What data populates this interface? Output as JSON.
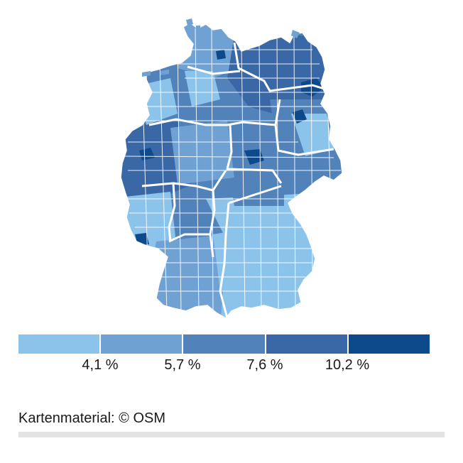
{
  "legend": {
    "colors": [
      "#8cc3ea",
      "#6fa2d3",
      "#5282ba",
      "#3a67a6",
      "#0d4a8c"
    ],
    "ticks": [
      "4,1 %",
      "5,7 %",
      "7,6 %",
      "10,2 %"
    ]
  },
  "credit": "Kartenmaterial: © OSM",
  "map": {
    "region": "Germany",
    "shading": "choropleth by district (Landkreise), five colour classes",
    "border_color": "#ffffff"
  }
}
